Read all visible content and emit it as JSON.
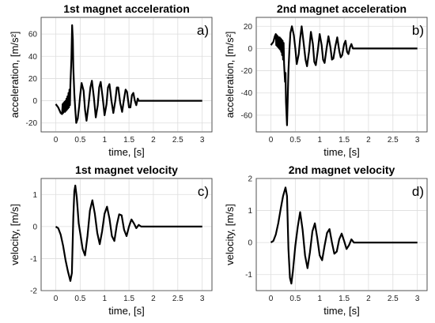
{
  "chart_data": [
    {
      "type": "line",
      "panel_label": "a)",
      "title": "1st magnet acceleration",
      "xlabel": "time, [s]",
      "ylabel": "acceleration, [m/s²]",
      "xlim": [
        -0.3,
        3.2
      ],
      "ylim": [
        -28,
        75
      ],
      "xticks": [
        "0",
        "0.5",
        "1",
        "1.5",
        "2",
        "2.5",
        "3"
      ],
      "xtick_values": [
        0,
        0.5,
        1,
        1.5,
        2,
        2.5,
        3
      ],
      "yticks": [
        "-20",
        "0",
        "20",
        "40",
        "60"
      ],
      "ytick_values": [
        -20,
        0,
        20,
        40,
        60
      ],
      "grid": true,
      "series": [
        {
          "values": [
            [
              0,
              -3
            ],
            [
              0.05,
              -6
            ],
            [
              0.1,
              -11
            ],
            [
              0.13,
              -12
            ],
            [
              0.14,
              -3
            ],
            [
              0.15,
              -11
            ],
            [
              0.16,
              -2
            ],
            [
              0.17,
              -10
            ],
            [
              0.18,
              -1
            ],
            [
              0.19,
              -10
            ],
            [
              0.2,
              0
            ],
            [
              0.21,
              -9
            ],
            [
              0.22,
              2
            ],
            [
              0.23,
              -8
            ],
            [
              0.24,
              4
            ],
            [
              0.25,
              -7
            ],
            [
              0.26,
              7
            ],
            [
              0.27,
              -6
            ],
            [
              0.28,
              10
            ],
            [
              0.29,
              -4
            ],
            [
              0.3,
              14
            ],
            [
              0.32,
              38
            ],
            [
              0.335,
              68
            ],
            [
              0.35,
              55
            ],
            [
              0.36,
              30
            ],
            [
              0.38,
              6
            ],
            [
              0.4,
              -8
            ],
            [
              0.42,
              -20
            ],
            [
              0.45,
              -16
            ],
            [
              0.48,
              -5
            ],
            [
              0.5,
              5
            ],
            [
              0.53,
              16
            ],
            [
              0.57,
              9
            ],
            [
              0.6,
              -8
            ],
            [
              0.63,
              -18
            ],
            [
              0.67,
              -4
            ],
            [
              0.71,
              12
            ],
            [
              0.74,
              18
            ],
            [
              0.78,
              3
            ],
            [
              0.82,
              -15
            ],
            [
              0.86,
              -4
            ],
            [
              0.89,
              12
            ],
            [
              0.92,
              17
            ],
            [
              0.96,
              3
            ],
            [
              1.0,
              -13
            ],
            [
              1.04,
              -3
            ],
            [
              1.07,
              12
            ],
            [
              1.1,
              15
            ],
            [
              1.14,
              0
            ],
            [
              1.18,
              -11
            ],
            [
              1.22,
              0
            ],
            [
              1.25,
              12
            ],
            [
              1.28,
              12
            ],
            [
              1.32,
              -2
            ],
            [
              1.36,
              -10
            ],
            [
              1.4,
              2
            ],
            [
              1.43,
              10
            ],
            [
              1.46,
              8
            ],
            [
              1.5,
              -6
            ],
            [
              1.53,
              -6
            ],
            [
              1.56,
              5
            ],
            [
              1.59,
              7
            ],
            [
              1.62,
              0
            ],
            [
              1.65,
              -4
            ],
            [
              1.68,
              2
            ],
            [
              1.7,
              0
            ],
            [
              1.75,
              0
            ],
            [
              2.0,
              0
            ],
            [
              2.5,
              0
            ],
            [
              3.0,
              0
            ]
          ]
        }
      ]
    },
    {
      "type": "line",
      "panel_label": "b)",
      "title": "2nd magnet acceleration",
      "xlabel": "time, [s]",
      "ylabel": "acceleration, [m/s²]",
      "xlim": [
        -0.3,
        3.2
      ],
      "ylim": [
        -75,
        28
      ],
      "xticks": [
        "0",
        "0.5",
        "1",
        "1.5",
        "2",
        "2.5",
        "3"
      ],
      "xtick_values": [
        0,
        0.5,
        1,
        1.5,
        2,
        2.5,
        3
      ],
      "yticks": [
        "-60",
        "-40",
        "-20",
        "0",
        "20"
      ],
      "ytick_values": [
        -60,
        -40,
        -20,
        0,
        20
      ],
      "grid": true,
      "series": [
        {
          "values": [
            [
              0,
              3
            ],
            [
              0.05,
              6
            ],
            [
              0.08,
              11
            ],
            [
              0.1,
              13
            ],
            [
              0.11,
              3
            ],
            [
              0.12,
              12
            ],
            [
              0.13,
              2
            ],
            [
              0.14,
              11
            ],
            [
              0.15,
              1
            ],
            [
              0.16,
              10
            ],
            [
              0.17,
              0
            ],
            [
              0.18,
              10
            ],
            [
              0.19,
              -1
            ],
            [
              0.2,
              9
            ],
            [
              0.21,
              -3
            ],
            [
              0.22,
              8
            ],
            [
              0.23,
              -6
            ],
            [
              0.24,
              7
            ],
            [
              0.25,
              -10
            ],
            [
              0.26,
              5
            ],
            [
              0.27,
              -14
            ],
            [
              0.29,
              -30
            ],
            [
              0.3,
              -22
            ],
            [
              0.31,
              -48
            ],
            [
              0.33,
              -69
            ],
            [
              0.345,
              -45
            ],
            [
              0.36,
              -20
            ],
            [
              0.38,
              0
            ],
            [
              0.4,
              14
            ],
            [
              0.43,
              20
            ],
            [
              0.47,
              12
            ],
            [
              0.5,
              0
            ],
            [
              0.53,
              -14
            ],
            [
              0.57,
              -5
            ],
            [
              0.6,
              9
            ],
            [
              0.63,
              20
            ],
            [
              0.67,
              5
            ],
            [
              0.71,
              -10
            ],
            [
              0.74,
              -16
            ],
            [
              0.78,
              -3
            ],
            [
              0.82,
              15
            ],
            [
              0.86,
              4
            ],
            [
              0.89,
              -12
            ],
            [
              0.92,
              -15
            ],
            [
              0.96,
              -2
            ],
            [
              1.0,
              13
            ],
            [
              1.04,
              3
            ],
            [
              1.07,
              -10
            ],
            [
              1.1,
              -13
            ],
            [
              1.14,
              0
            ],
            [
              1.18,
              11
            ],
            [
              1.22,
              1
            ],
            [
              1.25,
              -10
            ],
            [
              1.28,
              -9
            ],
            [
              1.32,
              2
            ],
            [
              1.36,
              10
            ],
            [
              1.4,
              -2
            ],
            [
              1.43,
              -8
            ],
            [
              1.46,
              -6
            ],
            [
              1.5,
              4
            ],
            [
              1.53,
              7
            ],
            [
              1.56,
              -3
            ],
            [
              1.59,
              -5
            ],
            [
              1.62,
              1
            ],
            [
              1.65,
              4
            ],
            [
              1.68,
              0
            ],
            [
              1.7,
              0
            ],
            [
              2.0,
              0
            ],
            [
              2.5,
              0
            ],
            [
              3.0,
              0
            ]
          ]
        }
      ]
    },
    {
      "type": "line",
      "panel_label": "c)",
      "title": "1st magnet velocity",
      "xlabel": "time, [s]",
      "ylabel": "velocity, [m/s]",
      "xlim": [
        -0.3,
        3.2
      ],
      "ylim": [
        -2,
        1.5
      ],
      "xticks": [
        "0",
        "0.5",
        "1",
        "1.5",
        "2",
        "2.5",
        "3"
      ],
      "xtick_values": [
        0,
        0.5,
        1,
        1.5,
        2,
        2.5,
        3
      ],
      "yticks": [
        "-2",
        "-1",
        "0",
        "1"
      ],
      "ytick_values": [
        -2,
        -1,
        0,
        1
      ],
      "grid": true,
      "series": [
        {
          "values": [
            [
              0,
              0
            ],
            [
              0.05,
              -0.05
            ],
            [
              0.1,
              -0.25
            ],
            [
              0.15,
              -0.6
            ],
            [
              0.2,
              -1.05
            ],
            [
              0.25,
              -1.4
            ],
            [
              0.3,
              -1.7
            ],
            [
              0.33,
              -1.45
            ],
            [
              0.36,
              0.3
            ],
            [
              0.38,
              1.1
            ],
            [
              0.4,
              1.28
            ],
            [
              0.43,
              0.9
            ],
            [
              0.47,
              0.1
            ],
            [
              0.5,
              -0.2
            ],
            [
              0.55,
              -0.7
            ],
            [
              0.6,
              -0.9
            ],
            [
              0.65,
              -0.3
            ],
            [
              0.7,
              0.5
            ],
            [
              0.75,
              0.82
            ],
            [
              0.8,
              0.4
            ],
            [
              0.85,
              -0.2
            ],
            [
              0.9,
              -0.55
            ],
            [
              0.95,
              -0.15
            ],
            [
              1.0,
              0.4
            ],
            [
              1.05,
              0.62
            ],
            [
              1.1,
              0.25
            ],
            [
              1.15,
              -0.3
            ],
            [
              1.2,
              -0.45
            ],
            [
              1.25,
              0.05
            ],
            [
              1.3,
              0.38
            ],
            [
              1.35,
              0.35
            ],
            [
              1.4,
              -0.1
            ],
            [
              1.45,
              -0.3
            ],
            [
              1.5,
              0.0
            ],
            [
              1.55,
              0.22
            ],
            [
              1.6,
              0.1
            ],
            [
              1.65,
              -0.05
            ],
            [
              1.7,
              0.05
            ],
            [
              1.75,
              0
            ],
            [
              2.0,
              0
            ],
            [
              2.5,
              0
            ],
            [
              3.0,
              0
            ]
          ]
        }
      ]
    },
    {
      "type": "line",
      "panel_label": "d)",
      "title": "2nd magnet velocity",
      "xlabel": "time, [s]",
      "ylabel": "velocity, [m/s]",
      "xlim": [
        -0.3,
        3.2
      ],
      "ylim": [
        -1.5,
        2
      ],
      "xticks": [
        "0",
        "0.5",
        "1",
        "1.5",
        "2",
        "2.5",
        "3"
      ],
      "xtick_values": [
        0,
        0.5,
        1,
        1.5,
        2,
        2.5,
        3
      ],
      "yticks": [
        "-1",
        "0",
        "1",
        "2"
      ],
      "ytick_values": [
        -1,
        0,
        1,
        2
      ],
      "grid": true,
      "series": [
        {
          "values": [
            [
              0,
              0
            ],
            [
              0.05,
              0.05
            ],
            [
              0.1,
              0.25
            ],
            [
              0.15,
              0.6
            ],
            [
              0.2,
              1.05
            ],
            [
              0.25,
              1.45
            ],
            [
              0.3,
              1.72
            ],
            [
              0.33,
              1.45
            ],
            [
              0.36,
              -0.2
            ],
            [
              0.39,
              -1.1
            ],
            [
              0.42,
              -1.28
            ],
            [
              0.45,
              -0.9
            ],
            [
              0.5,
              -0.1
            ],
            [
              0.55,
              0.5
            ],
            [
              0.6,
              0.95
            ],
            [
              0.65,
              0.4
            ],
            [
              0.7,
              -0.4
            ],
            [
              0.75,
              -0.8
            ],
            [
              0.8,
              -0.3
            ],
            [
              0.85,
              0.35
            ],
            [
              0.9,
              0.6
            ],
            [
              0.95,
              0.15
            ],
            [
              1.0,
              -0.4
            ],
            [
              1.05,
              -0.55
            ],
            [
              1.1,
              -0.1
            ],
            [
              1.15,
              0.3
            ],
            [
              1.2,
              0.42
            ],
            [
              1.25,
              0.0
            ],
            [
              1.3,
              -0.35
            ],
            [
              1.35,
              -0.28
            ],
            [
              1.4,
              0.1
            ],
            [
              1.45,
              0.28
            ],
            [
              1.5,
              0.05
            ],
            [
              1.55,
              -0.2
            ],
            [
              1.6,
              -0.08
            ],
            [
              1.65,
              0.1
            ],
            [
              1.7,
              0
            ],
            [
              1.75,
              0
            ],
            [
              2.0,
              0
            ],
            [
              2.5,
              0
            ],
            [
              3.0,
              0
            ]
          ]
        }
      ]
    }
  ]
}
